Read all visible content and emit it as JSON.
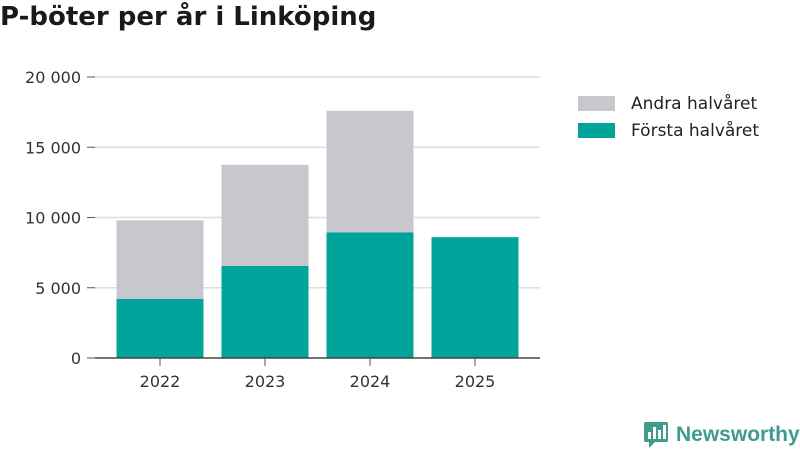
{
  "title": "P-böter per år i Linköping",
  "brand": {
    "name": "Newsworthy",
    "logo_icon": "newsworthy-chart-icon",
    "color": "#3e9b8e"
  },
  "legend": [
    {
      "label": "Andra halvåret",
      "color": "#c8c7ce"
    },
    {
      "label": "Första halvåret",
      "color": "#00a49a"
    }
  ],
  "chart_data": {
    "type": "bar",
    "stacked": true,
    "title": "P-böter per år i Linköping",
    "categories": [
      "2022",
      "2023",
      "2024",
      "2025"
    ],
    "series": [
      {
        "name": "Första halvåret",
        "color": "#00a49a",
        "values": [
          4200,
          6550,
          8950,
          8600
        ]
      },
      {
        "name": "Andra halvåret",
        "color": "#c8c7ce",
        "values": [
          5600,
          7200,
          8650,
          0
        ]
      }
    ],
    "ylim": [
      0,
      20000
    ],
    "yticks": [
      0,
      5000,
      10000,
      15000,
      20000
    ],
    "ytick_labels": [
      "0",
      "5 000",
      "10 000",
      "15 000",
      "20 000"
    ],
    "xlabel": "",
    "ylabel": "",
    "grid": true,
    "legend_position": "right"
  }
}
